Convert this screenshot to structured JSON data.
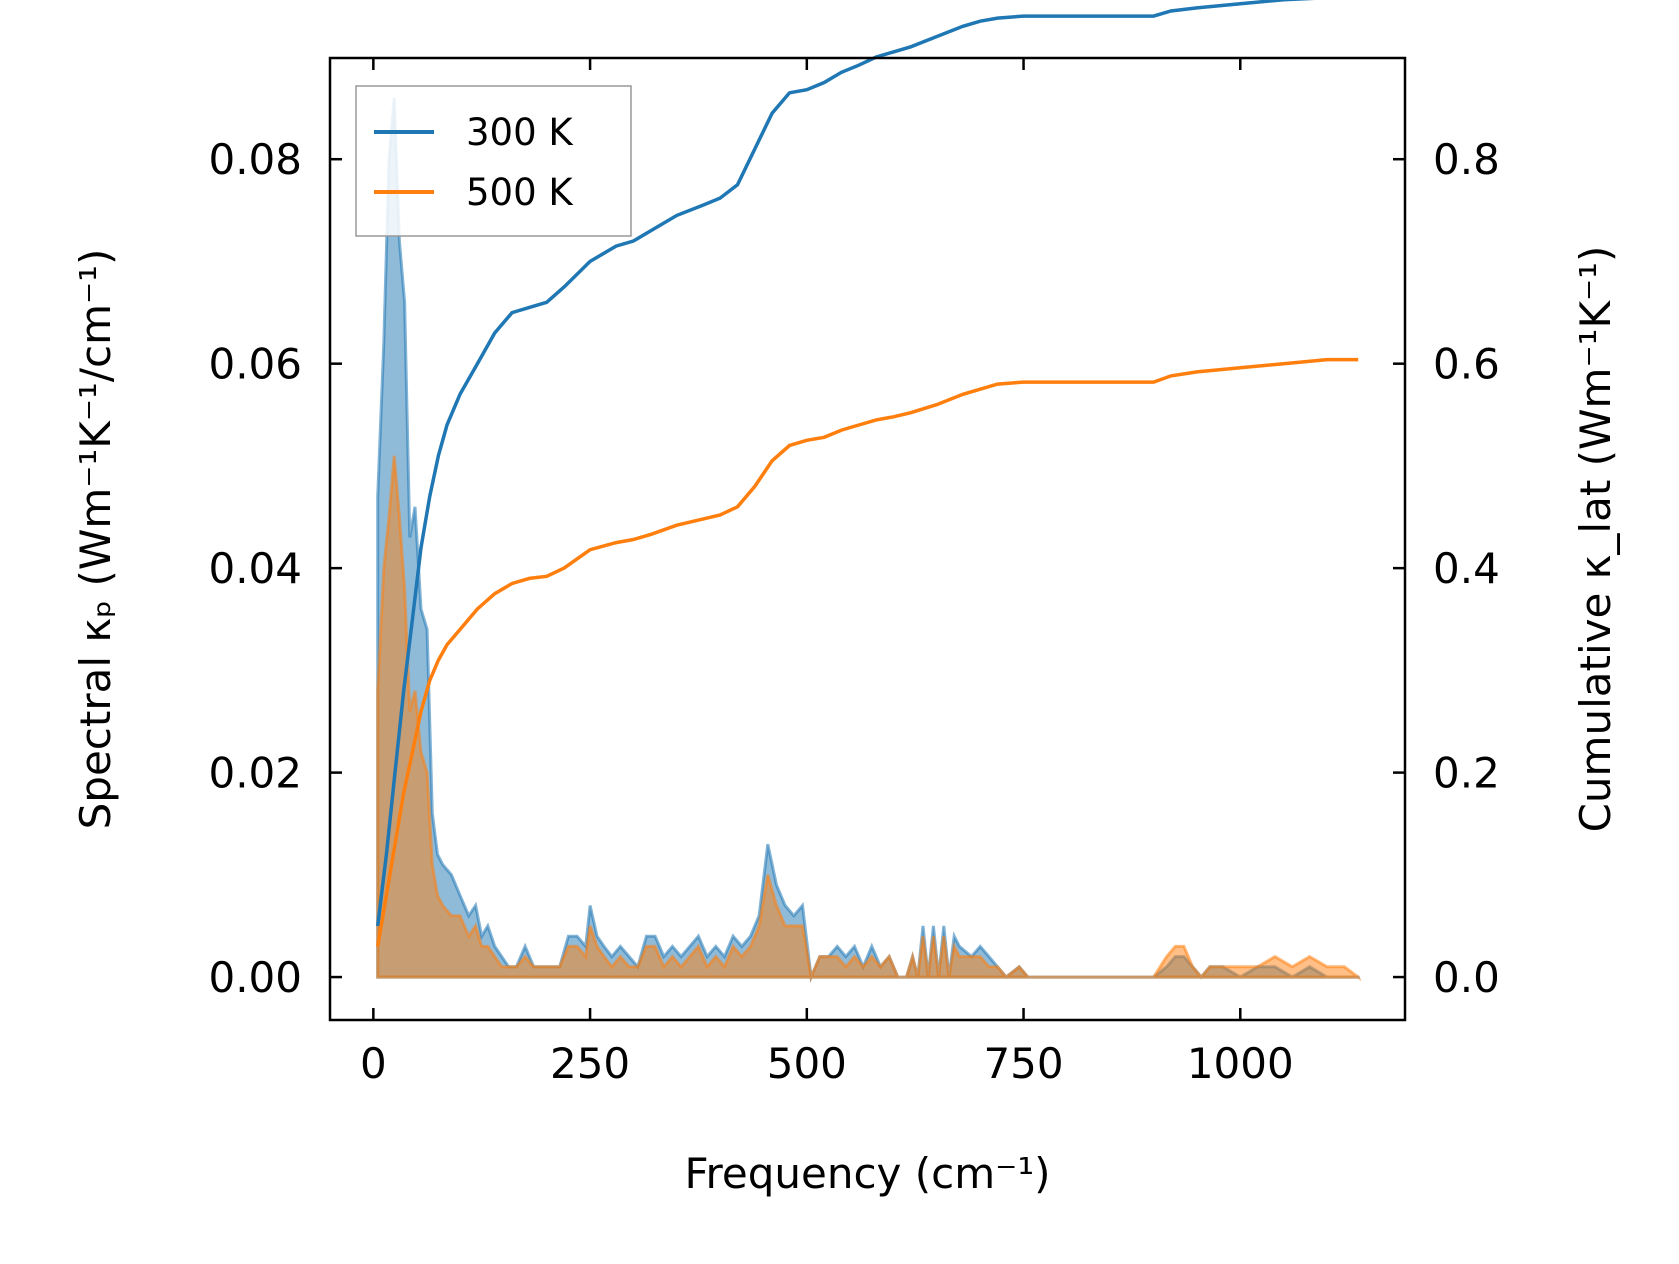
{
  "chart_data": {
    "type": "line",
    "title": "",
    "xlabel": "Frequency (cm⁻¹)",
    "ylabel_left": "Spectral κₚ (Wm⁻¹K⁻¹/cm⁻¹)",
    "ylabel_right": "Cumulative κ_lat (Wm⁻¹K⁻¹)",
    "xlim": [
      -50,
      1190
    ],
    "ylim_left": [
      -0.0042,
      0.0899
    ],
    "ylim_right": [
      -0.042,
      0.899
    ],
    "xticks": [
      0,
      250,
      500,
      750,
      1000
    ],
    "xtick_labels": [
      "0",
      "250",
      "500",
      "750",
      "1000"
    ],
    "yticks_left": [
      0.0,
      0.02,
      0.04,
      0.06,
      0.08
    ],
    "ytick_labels_left": [
      "0.00",
      "0.02",
      "0.04",
      "0.06",
      "0.08"
    ],
    "yticks_right": [
      0.0,
      0.2,
      0.4,
      0.6,
      0.8
    ],
    "ytick_labels_right": [
      "0.0",
      "0.2",
      "0.4",
      "0.6",
      "0.8"
    ],
    "legend": {
      "position": "top-left",
      "entries": [
        {
          "label": "300 K",
          "color": "#1f77b4"
        },
        {
          "label": "500 K",
          "color": "#ff7f0e"
        }
      ]
    },
    "spectral_series": [
      {
        "name": "300 K",
        "axis": "left",
        "color": "#1f77b4",
        "x": [
          5,
          12,
          18,
          24,
          30,
          36,
          42,
          48,
          55,
          62,
          68,
          74,
          80,
          90,
          100,
          110,
          118,
          125,
          132,
          140,
          148,
          156,
          165,
          175,
          185,
          195,
          205,
          215,
          225,
          235,
          245,
          250,
          258,
          266,
          275,
          285,
          295,
          305,
          315,
          325,
          335,
          345,
          355,
          365,
          375,
          385,
          395,
          405,
          415,
          425,
          435,
          445,
          455,
          465,
          475,
          485,
          495,
          505,
          515,
          525,
          535,
          545,
          555,
          565,
          575,
          585,
          595,
          605,
          615,
          622,
          628,
          634,
          640,
          646,
          652,
          658,
          664,
          670,
          676,
          690,
          700,
          710,
          720,
          730,
          745,
          755,
          765,
          780,
          800,
          850,
          900,
          915,
          925,
          935,
          945,
          955,
          965,
          980,
          1000,
          1020,
          1040,
          1060,
          1080,
          1100,
          1120,
          1136
        ],
        "y": [
          0.047,
          0.062,
          0.08,
          0.086,
          0.072,
          0.066,
          0.043,
          0.046,
          0.036,
          0.034,
          0.016,
          0.012,
          0.011,
          0.01,
          0.008,
          0.006,
          0.007,
          0.004,
          0.005,
          0.003,
          0.002,
          0.001,
          0.001,
          0.003,
          0.001,
          0.001,
          0.001,
          0.001,
          0.004,
          0.004,
          0.003,
          0.007,
          0.004,
          0.003,
          0.002,
          0.003,
          0.002,
          0.001,
          0.004,
          0.004,
          0.002,
          0.003,
          0.002,
          0.003,
          0.004,
          0.002,
          0.003,
          0.002,
          0.004,
          0.003,
          0.004,
          0.006,
          0.013,
          0.009,
          0.007,
          0.006,
          0.007,
          0.0,
          0.002,
          0.002,
          0.003,
          0.002,
          0.003,
          0.001,
          0.003,
          0.001,
          0.002,
          0.0,
          0.0,
          0.002,
          0.0,
          0.005,
          0.0,
          0.005,
          0.0,
          0.005,
          0.0,
          0.004,
          0.003,
          0.002,
          0.003,
          0.002,
          0.001,
          0.0,
          0.001,
          0.0,
          0.0,
          0.0,
          0.0,
          0.0,
          0.0,
          0.001,
          0.002,
          0.002,
          0.001,
          0.0,
          0.001,
          0.001,
          0.0,
          0.001,
          0.001,
          0.0,
          0.001,
          0.0,
          0.0,
          0.0
        ]
      },
      {
        "name": "500 K",
        "axis": "left",
        "color": "#ff7f0e",
        "x": [
          5,
          12,
          18,
          24,
          30,
          36,
          42,
          48,
          55,
          62,
          68,
          74,
          80,
          90,
          100,
          110,
          118,
          125,
          132,
          140,
          148,
          156,
          165,
          175,
          185,
          195,
          205,
          215,
          225,
          235,
          245,
          250,
          258,
          266,
          275,
          285,
          295,
          305,
          315,
          325,
          335,
          345,
          355,
          365,
          375,
          385,
          395,
          405,
          415,
          425,
          435,
          445,
          455,
          465,
          475,
          485,
          495,
          505,
          515,
          525,
          535,
          545,
          555,
          565,
          575,
          585,
          595,
          605,
          615,
          622,
          628,
          634,
          640,
          646,
          652,
          658,
          664,
          670,
          676,
          690,
          700,
          710,
          720,
          730,
          745,
          755,
          765,
          780,
          800,
          850,
          900,
          915,
          925,
          935,
          945,
          955,
          965,
          980,
          1000,
          1020,
          1040,
          1060,
          1080,
          1100,
          1120,
          1136
        ],
        "y": [
          0.028,
          0.04,
          0.045,
          0.051,
          0.045,
          0.038,
          0.026,
          0.028,
          0.022,
          0.02,
          0.011,
          0.008,
          0.007,
          0.006,
          0.006,
          0.004,
          0.005,
          0.003,
          0.003,
          0.002,
          0.001,
          0.001,
          0.001,
          0.002,
          0.001,
          0.001,
          0.001,
          0.001,
          0.003,
          0.003,
          0.002,
          0.005,
          0.003,
          0.002,
          0.001,
          0.002,
          0.001,
          0.001,
          0.003,
          0.003,
          0.001,
          0.002,
          0.001,
          0.002,
          0.003,
          0.001,
          0.002,
          0.001,
          0.003,
          0.002,
          0.003,
          0.005,
          0.01,
          0.007,
          0.005,
          0.005,
          0.005,
          0.0,
          0.002,
          0.002,
          0.002,
          0.001,
          0.002,
          0.001,
          0.002,
          0.001,
          0.002,
          0.0,
          0.0,
          0.002,
          0.0,
          0.004,
          0.0,
          0.004,
          0.0,
          0.004,
          0.0,
          0.003,
          0.002,
          0.002,
          0.002,
          0.001,
          0.001,
          0.0,
          0.001,
          0.0,
          0.0,
          0.0,
          0.0,
          0.0,
          0.0,
          0.002,
          0.003,
          0.003,
          0.001,
          0.0,
          0.001,
          0.001,
          0.001,
          0.001,
          0.002,
          0.001,
          0.002,
          0.001,
          0.001,
          0.0
        ]
      }
    ],
    "cumulative_series": [
      {
        "name": "300 K",
        "axis": "right",
        "color": "#1f77b4",
        "x": [
          5,
          15,
          25,
          35,
          45,
          55,
          65,
          75,
          85,
          100,
          120,
          140,
          160,
          180,
          200,
          220,
          250,
          280,
          300,
          320,
          350,
          380,
          400,
          420,
          440,
          460,
          480,
          500,
          520,
          540,
          560,
          580,
          600,
          620,
          650,
          680,
          700,
          720,
          750,
          780,
          850,
          900,
          920,
          950,
          1000,
          1050,
          1100,
          1136
        ],
        "y": [
          0.05,
          0.12,
          0.2,
          0.28,
          0.35,
          0.42,
          0.47,
          0.51,
          0.54,
          0.57,
          0.6,
          0.63,
          0.65,
          0.655,
          0.66,
          0.675,
          0.7,
          0.715,
          0.72,
          0.73,
          0.745,
          0.755,
          0.762,
          0.775,
          0.81,
          0.845,
          0.865,
          0.868,
          0.875,
          0.885,
          0.892,
          0.9,
          0.905,
          0.91,
          0.92,
          0.93,
          0.935,
          0.938,
          0.94,
          0.94,
          0.94,
          0.94,
          0.945,
          0.948,
          0.952,
          0.956,
          0.958,
          0.958
        ]
      },
      {
        "name": "500 K",
        "axis": "right",
        "color": "#ff7f0e",
        "x": [
          5,
          15,
          25,
          35,
          45,
          55,
          65,
          75,
          85,
          100,
          120,
          140,
          160,
          180,
          200,
          220,
          250,
          280,
          300,
          320,
          350,
          380,
          400,
          420,
          440,
          460,
          480,
          500,
          520,
          540,
          560,
          580,
          600,
          620,
          650,
          680,
          700,
          720,
          750,
          780,
          850,
          900,
          920,
          950,
          1000,
          1050,
          1100,
          1136
        ],
        "y": [
          0.03,
          0.08,
          0.13,
          0.18,
          0.22,
          0.26,
          0.29,
          0.31,
          0.325,
          0.34,
          0.36,
          0.375,
          0.385,
          0.39,
          0.392,
          0.4,
          0.418,
          0.425,
          0.428,
          0.433,
          0.442,
          0.448,
          0.452,
          0.46,
          0.48,
          0.505,
          0.52,
          0.525,
          0.528,
          0.535,
          0.54,
          0.545,
          0.548,
          0.552,
          0.56,
          0.57,
          0.575,
          0.58,
          0.582,
          0.582,
          0.582,
          0.582,
          0.588,
          0.592,
          0.596,
          0.6,
          0.604,
          0.604
        ]
      }
    ]
  }
}
